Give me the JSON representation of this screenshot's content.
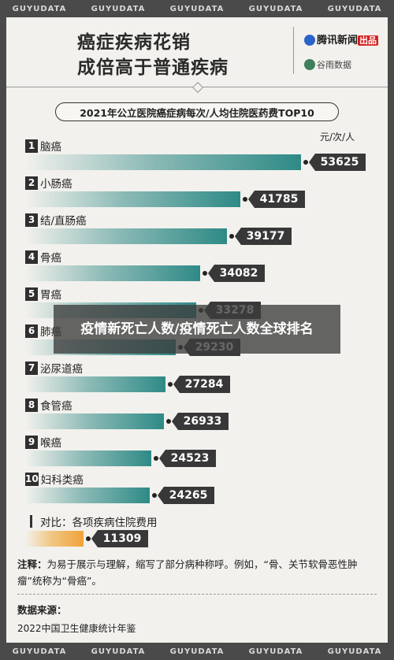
{
  "strip": {
    "items": [
      "GUYUDATA",
      "GUYUDATA",
      "GUYUDATA",
      "GUYUDATA",
      "GUYUDATA"
    ]
  },
  "header": {
    "title_line1": "癌症疾病花销",
    "title_line2": "成倍高于普通疾病",
    "brand1_name": "腾讯新闻",
    "brand1_badge": "出品",
    "brand2_name": "谷雨数据"
  },
  "overlay": {
    "text": "疫情新死亡人数/疫情死亡人数全球排名"
  },
  "note": {
    "label": "注释：",
    "text": "为易于展示与理解，缩写了部分病种称呼。例如，“骨、关节软骨恶性肿瘤”统称为“骨癌”。"
  },
  "source": {
    "title": "数据来源：",
    "text": "2022中国卫生健康统计年鉴"
  },
  "chart_data": {
    "type": "bar",
    "title": "2021年公立医院癌症病每次/人均住院医药费TOP10",
    "unit": "元/次/人",
    "categories": [
      "脑癌",
      "小肠癌",
      "结/直肠癌",
      "骨癌",
      "胃癌",
      "肺癌",
      "泌尿道癌",
      "食管癌",
      "喉癌",
      "妇科类癌"
    ],
    "ranks": [
      "1",
      "2",
      "3",
      "4",
      "5",
      "6",
      "7",
      "8",
      "9",
      "10"
    ],
    "values": [
      53625,
      41785,
      39177,
      34082,
      33278,
      29230,
      27284,
      26933,
      24523,
      24265
    ],
    "value_labels": [
      "53625",
      "41785",
      "39177",
      "34082",
      "33278",
      "29230",
      "27284",
      "26933",
      "24523",
      "24265"
    ],
    "bar_color": "#2e8a86",
    "comparison": {
      "label": "对比：各项疾病住院费用",
      "value": 11309,
      "value_label": "11309",
      "color": "#f0a23a"
    }
  }
}
